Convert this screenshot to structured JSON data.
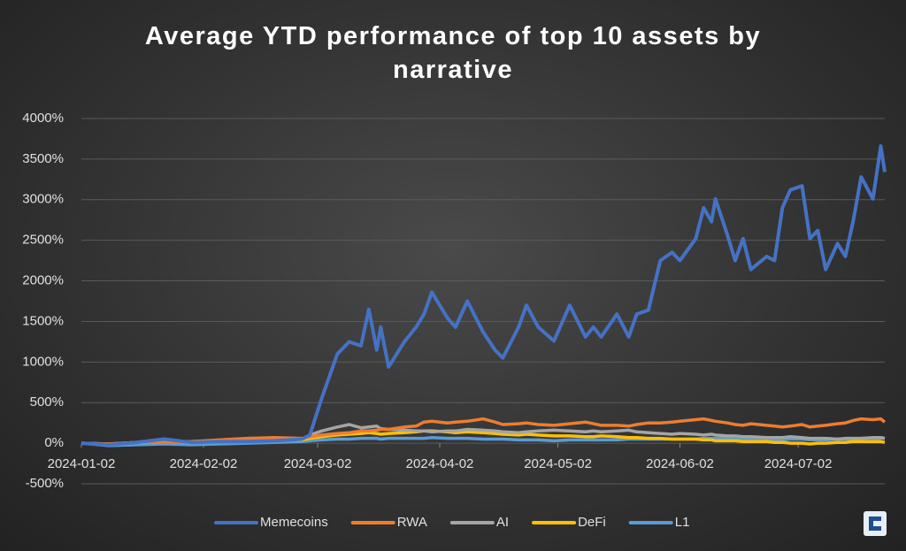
{
  "chart_data": {
    "type": "line",
    "title": "Average YTD performance of top 10 assets by narrative",
    "x": [
      "2024-01-02",
      "2024-01-09",
      "2024-01-16",
      "2024-01-23",
      "2024-01-30",
      "2024-02-06",
      "2024-02-13",
      "2024-02-20",
      "2024-02-27",
      "2024-02-29",
      "2024-03-03",
      "2024-03-07",
      "2024-03-10",
      "2024-03-13",
      "2024-03-15",
      "2024-03-17",
      "2024-03-18",
      "2024-03-20",
      "2024-03-24",
      "2024-03-27",
      "2024-03-29",
      "2024-03-31",
      "2024-04-04",
      "2024-04-06",
      "2024-04-09",
      "2024-04-13",
      "2024-04-16",
      "2024-04-18",
      "2024-04-22",
      "2024-04-24",
      "2024-04-27",
      "2024-05-01",
      "2024-05-05",
      "2024-05-09",
      "2024-05-11",
      "2024-05-13",
      "2024-05-17",
      "2024-05-20",
      "2024-05-22",
      "2024-05-25",
      "2024-05-28",
      "2024-05-31",
      "2024-06-02",
      "2024-06-06",
      "2024-06-08",
      "2024-06-10",
      "2024-06-11",
      "2024-06-14",
      "2024-06-16",
      "2024-06-18",
      "2024-06-20",
      "2024-06-24",
      "2024-06-26",
      "2024-06-28",
      "2024-06-30",
      "2024-07-03",
      "2024-07-05",
      "2024-07-07",
      "2024-07-09",
      "2024-07-12",
      "2024-07-14",
      "2024-07-16",
      "2024-07-18",
      "2024-07-21",
      "2024-07-23",
      "2024-07-24"
    ],
    "xlim": [
      "2024-01-02",
      "2024-07-24"
    ],
    "xticks": [
      "2024-01-02",
      "2024-02-02",
      "2024-03-02",
      "2024-04-02",
      "2024-05-02",
      "2024-06-02",
      "2024-07-02"
    ],
    "ylim": [
      -500,
      4000
    ],
    "yticks": [
      {
        "value": -500,
        "label": "-500%"
      },
      {
        "value": 0,
        "label": "0%"
      },
      {
        "value": 500,
        "label": "500%"
      },
      {
        "value": 1000,
        "label": "1000%"
      },
      {
        "value": 1500,
        "label": "1500%"
      },
      {
        "value": 2000,
        "label": "2000%"
      },
      {
        "value": 2500,
        "label": "2500%"
      },
      {
        "value": 3000,
        "label": "3000%"
      },
      {
        "value": 3500,
        "label": "3500%"
      },
      {
        "value": 4000,
        "label": "4000%"
      }
    ],
    "grid": true,
    "legend": "bottom",
    "series": [
      {
        "name": "Memecoins",
        "color": "#4472c4",
        "values": [
          0,
          -20,
          10,
          50,
          10,
          20,
          20,
          30,
          50,
          100,
          550,
          1100,
          1250,
          1200,
          1650,
          1150,
          1430,
          940,
          1250,
          1430,
          1590,
          1860,
          1540,
          1430,
          1750,
          1370,
          1150,
          1050,
          1430,
          1700,
          1430,
          1260,
          1700,
          1310,
          1430,
          1310,
          1590,
          1310,
          1590,
          1640,
          2250,
          2350,
          2250,
          2520,
          2900,
          2730,
          3010,
          2570,
          2250,
          2520,
          2140,
          2300,
          2250,
          2900,
          3120,
          3170,
          2520,
          2620,
          2140,
          2460,
          2300,
          2740,
          3280,
          3010,
          3660,
          3340
        ]
      },
      {
        "name": "RWA",
        "color": "#ed7d31",
        "values": [
          0,
          -10,
          10,
          20,
          20,
          40,
          60,
          70,
          60,
          80,
          100,
          120,
          130,
          150,
          150,
          160,
          170,
          170,
          200,
          210,
          260,
          270,
          250,
          260,
          270,
          300,
          260,
          230,
          240,
          250,
          230,
          220,
          240,
          260,
          240,
          220,
          220,
          210,
          230,
          250,
          250,
          260,
          270,
          290,
          300,
          280,
          270,
          250,
          230,
          220,
          240,
          220,
          210,
          200,
          210,
          230,
          200,
          210,
          220,
          240,
          250,
          280,
          300,
          290,
          300,
          260
        ]
      },
      {
        "name": "AI",
        "color": "#a5a5a5",
        "values": [
          0,
          -10,
          10,
          30,
          10,
          20,
          30,
          40,
          50,
          100,
          150,
          200,
          230,
          190,
          200,
          210,
          180,
          170,
          160,
          150,
          150,
          140,
          150,
          150,
          170,
          160,
          150,
          140,
          130,
          140,
          150,
          160,
          150,
          140,
          150,
          140,
          150,
          160,
          140,
          130,
          120,
          110,
          120,
          110,
          100,
          110,
          100,
          90,
          90,
          80,
          80,
          70,
          70,
          70,
          80,
          70,
          60,
          60,
          60,
          50,
          60,
          60,
          60,
          70,
          70,
          60
        ]
      },
      {
        "name": "DeFi",
        "color": "#ffc000",
        "values": [
          0,
          -10,
          10,
          20,
          20,
          30,
          30,
          40,
          40,
          60,
          80,
          100,
          110,
          120,
          130,
          120,
          110,
          120,
          130,
          140,
          150,
          150,
          140,
          130,
          140,
          130,
          120,
          110,
          100,
          110,
          100,
          90,
          90,
          80,
          80,
          90,
          80,
          70,
          70,
          60,
          60,
          50,
          50,
          50,
          40,
          40,
          30,
          30,
          30,
          20,
          20,
          20,
          10,
          10,
          0,
          0,
          -10,
          0,
          0,
          10,
          10,
          20,
          20,
          20,
          20,
          10
        ]
      },
      {
        "name": "L1",
        "color": "#5b9bd5",
        "values": [
          0,
          -30,
          -20,
          -10,
          -20,
          -10,
          0,
          10,
          20,
          30,
          40,
          50,
          50,
          60,
          60,
          60,
          50,
          60,
          60,
          60,
          60,
          70,
          60,
          60,
          60,
          50,
          50,
          50,
          40,
          40,
          40,
          30,
          40,
          40,
          40,
          40,
          40,
          50,
          50,
          50,
          50,
          50,
          50,
          50,
          60,
          60,
          60,
          60,
          50,
          50,
          50,
          50,
          40,
          40,
          50,
          50,
          40,
          40,
          40,
          50,
          50,
          50,
          60,
          60,
          60,
          60
        ]
      }
    ]
  }
}
